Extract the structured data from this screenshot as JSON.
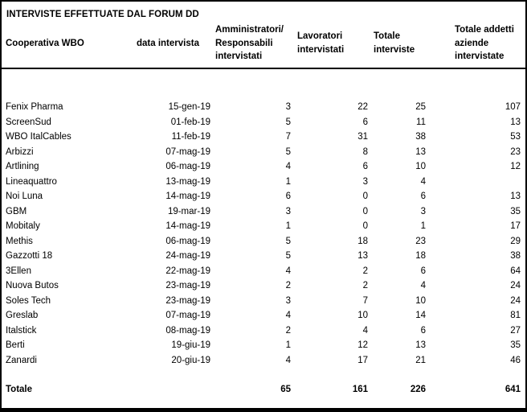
{
  "title": "INTERVISTE EFFETTUATE DAL FORUM DD",
  "table": {
    "headers": [
      "Cooperativa WBO",
      "data intervista",
      "Amministratori/\nResponsabili\nintervistati",
      "Lavoratori\nintervistati",
      "Totale\ninterviste",
      "Totale addetti\naziende\nintervistate"
    ],
    "rows": [
      [
        "Fenix Pharma",
        "15-gen-19",
        "3",
        "22",
        "25",
        "107"
      ],
      [
        "ScreenSud",
        "01-feb-19",
        "5",
        "6",
        "11",
        "13"
      ],
      [
        "WBO ItalCables",
        "11-feb-19",
        "7",
        "31",
        "38",
        "53"
      ],
      [
        "Arbizzi",
        "07-mag-19",
        "5",
        "8",
        "13",
        "23"
      ],
      [
        "Artlining",
        "06-mag-19",
        "4",
        "6",
        "10",
        "12"
      ],
      [
        "Lineaquattro",
        "13-mag-19",
        "1",
        "3",
        "4",
        ""
      ],
      [
        "Noi Luna",
        "14-mag-19",
        "6",
        "0",
        "6",
        "13"
      ],
      [
        "GBM",
        "19-mar-19",
        "3",
        "0",
        "3",
        "35"
      ],
      [
        "Mobitaly",
        "14-mag-19",
        "1",
        "0",
        "1",
        "17"
      ],
      [
        "Methis",
        "06-mag-19",
        "5",
        "18",
        "23",
        "29"
      ],
      [
        "Gazzotti 18",
        "24-mag-19",
        "5",
        "13",
        "18",
        "38"
      ],
      [
        "3Ellen",
        "22-mag-19",
        "4",
        "2",
        "6",
        "64"
      ],
      [
        "Nuova Butos",
        "23-mag-19",
        "2",
        "2",
        "4",
        "24"
      ],
      [
        "Soles Tech",
        "23-mag-19",
        "3",
        "7",
        "10",
        "24"
      ],
      [
        "Greslab",
        "07-mag-19",
        "4",
        "10",
        "14",
        "81"
      ],
      [
        "Italstick",
        "08-mag-19",
        "2",
        "4",
        "6",
        "27"
      ],
      [
        "Berti",
        "19-giu-19",
        "1",
        "12",
        "13",
        "35"
      ],
      [
        "Zanardi",
        "20-giu-19",
        "4",
        "17",
        "21",
        "46"
      ]
    ],
    "total_row": [
      "Totale",
      "",
      "65",
      "161",
      "226",
      "641"
    ]
  }
}
